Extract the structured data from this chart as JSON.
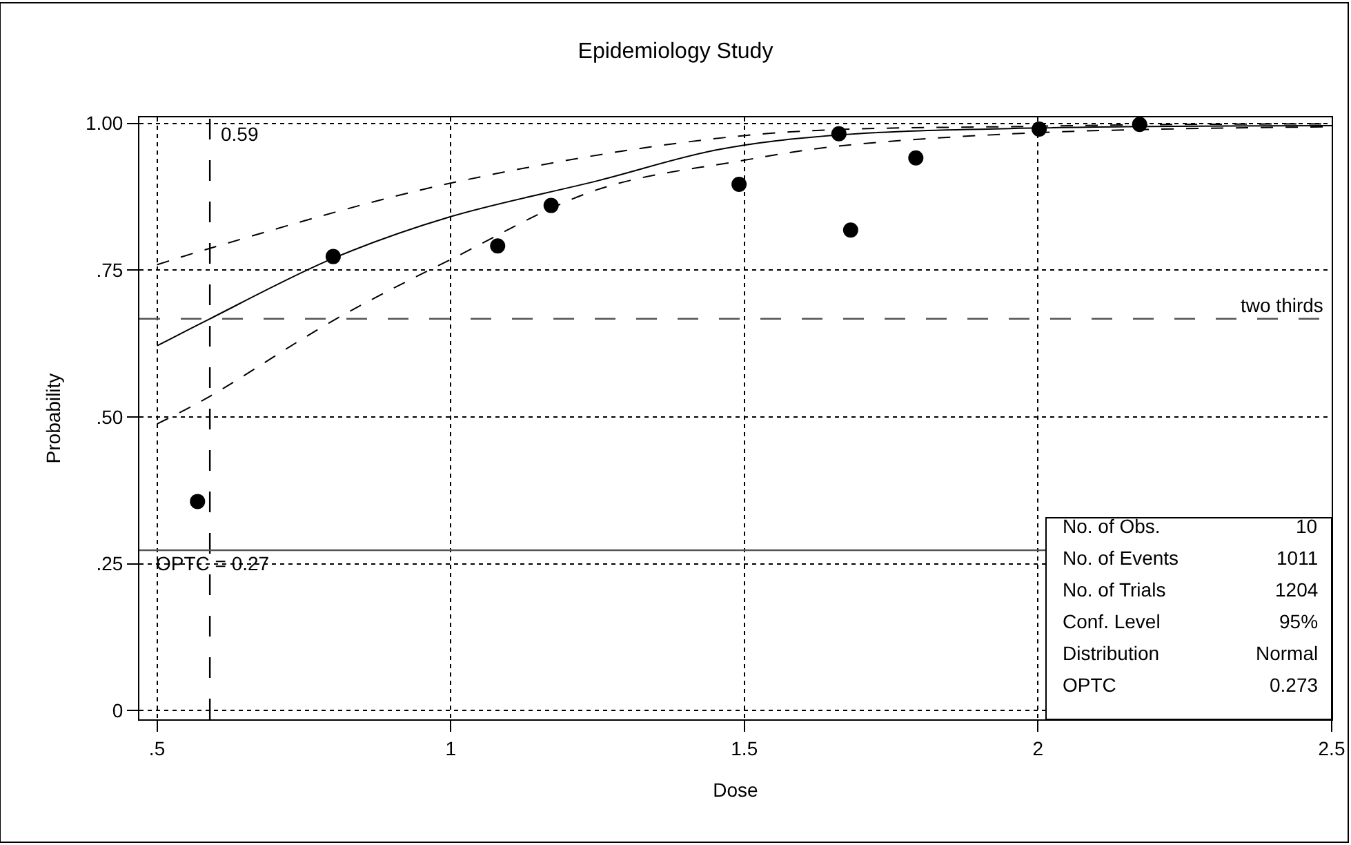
{
  "chart_data": {
    "type": "scatter",
    "title": "Epidemiology Study",
    "xlabel": "Dose",
    "ylabel": "Probability",
    "xlim": [
      0.47,
      2.5
    ],
    "ylim": [
      -0.015,
      1.01
    ],
    "xticks": [
      {
        "value": 0.5,
        "label": ".5"
      },
      1,
      1.5,
      2,
      2.5
    ],
    "yticks": [
      0,
      {
        "value": 0.25,
        "label": ".25"
      },
      {
        "value": 0.5,
        "label": ".50"
      },
      {
        "value": 0.75,
        "label": ".75"
      },
      {
        "value": 1,
        "label": "1.00"
      }
    ],
    "grid": true,
    "series": [
      {
        "marker": "circle",
        "color": "#000000",
        "x": [
          0.569,
          0.8,
          1.08,
          1.171,
          1.491,
          1.661,
          1.681,
          1.792,
          2.002,
          2.173
        ],
        "values": [
          0.356,
          0.773,
          0.791,
          0.86,
          0.896,
          0.982,
          0.818,
          0.941,
          0.99,
          0.998
        ]
      },
      {
        "type": "line",
        "marker": "none",
        "line_style": "solid",
        "color": "#000000",
        "x": [
          0.5,
          0.59,
          0.8,
          1,
          1.25,
          1.455,
          1.66,
          2,
          2.5
        ],
        "values": [
          0.621,
          0.667,
          0.77,
          0.841,
          0.902,
          0.955,
          0.98,
          0.992,
          0.996
        ]
      },
      {
        "type": "line",
        "marker": "none",
        "line_style": "dashed",
        "color": "#000000",
        "x": [
          0.5,
          0.59,
          1,
          1.5,
          2,
          2.5
        ],
        "values": [
          0.759,
          0.787,
          0.898,
          0.979,
          0.995,
          0.999
        ]
      },
      {
        "type": "line",
        "marker": "none",
        "line_style": "dashed",
        "color": "#000000",
        "x": [
          0.5,
          0.59,
          0.8,
          1,
          1.25,
          1.5,
          1.66,
          2,
          2.5
        ],
        "values": [
          0.488,
          0.535,
          0.664,
          0.768,
          0.887,
          0.937,
          0.961,
          0.984,
          0.994
        ]
      }
    ],
    "ref_lines": [
      {
        "axis": "x",
        "value": 0.59,
        "label": "0.59",
        "line_style": "dashed",
        "color": "#000000"
      },
      {
        "axis": "y",
        "value": 0.667,
        "label": "two thirds",
        "line_style": "dashed",
        "color": "#555555"
      },
      {
        "axis": "y",
        "value": 0.273,
        "label": "OPTC = 0.27",
        "line_style": "solid",
        "color": "#555555"
      }
    ],
    "annotations": [
      "No. of Obs.",
      "10",
      "No. of Events",
      "1011",
      "No. of Trials",
      "1204",
      "Conf. Level",
      "95%",
      "Distribution",
      "Normal",
      "OPTC",
      "0.273"
    ]
  }
}
